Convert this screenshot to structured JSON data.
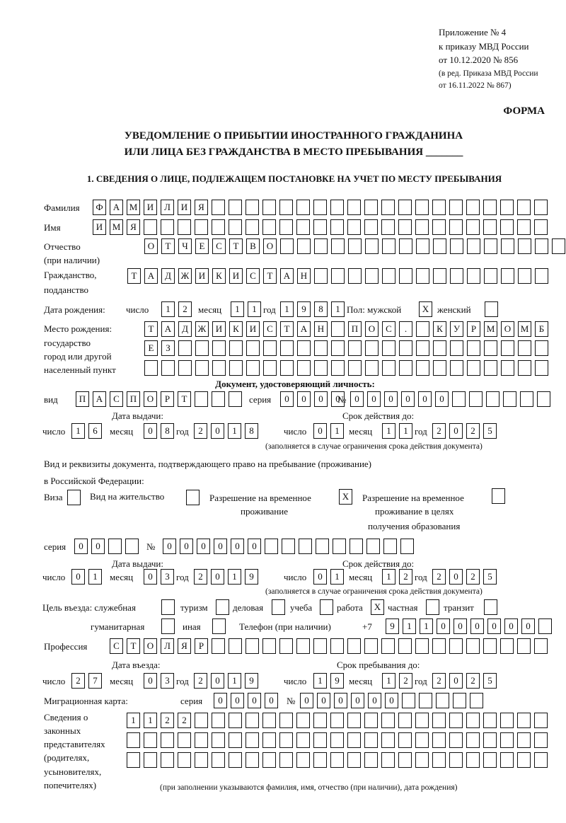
{
  "header": {
    "appendix": "Приложение № 4",
    "order_line": "к приказу МВД России",
    "order_date": "от 10.12.2020 № 856",
    "edition_line": "(в ред. Приказа МВД России",
    "edition_date": "от 16.11.2022 № 867)",
    "form_label": "ФОРМА",
    "title_line1": "УВЕДОМЛЕНИЕ О ПРИБЫТИИ ИНОСТРАННОГО ГРАЖДАНИНА",
    "title_line2": "ИЛИ ЛИЦА БЕЗ ГРАЖДАНСТВА В МЕСТО ПРЕБЫВАНИЯ _______",
    "section1": "1. СВЕДЕНИЯ О ЛИЦЕ, ПОДЛЕЖАЩЕМ ПОСТАНОВКЕ НА УЧЕТ ПО МЕСТУ ПРЕБЫВАНИЯ"
  },
  "labels": {
    "surname": "Фамилия",
    "name": "Имя",
    "patronymic": "Отчество",
    "patronymic_note": "(при наличии)",
    "citizenship": "Гражданство,",
    "citizenship2": "подданство",
    "birth_date": "Дата рождения:",
    "day": "число",
    "month": "месяц",
    "year": "год",
    "sex": "Пол: мужской",
    "female": "женский",
    "birth_place": "Место рождения:",
    "bp_state": "государство",
    "bp_city": "город или другой",
    "bp_city2": "населенный пункт",
    "id_doc": "Документ, удостоверяющий личность:",
    "kind": "вид",
    "series": "серия",
    "number": "№",
    "issue_date": "Дата выдачи:",
    "valid_until": "Срок действия до:",
    "validity_note": "(заполняется в случае ограничения срока действия документа)",
    "stay_doc1": "Вид и реквизиты документа, подтверждающего право на пребывание (проживание)",
    "stay_doc2": "в Российской Федерации:",
    "visa": "Виза",
    "residence": "Вид на жительство",
    "temp_permit": "Разрешение на временное",
    "temp_permit2": "проживание",
    "edu_permit": "Разрешение на временное",
    "edu_permit2": "проживание в целях",
    "edu_permit3": "получения образования",
    "purpose": "Цель въезда: служебная",
    "tourism": "туризм",
    "business": "деловая",
    "study": "учеба",
    "work": "работа",
    "private": "частная",
    "transit": "транзит",
    "humanitarian": "гуманитарная",
    "other": "иная",
    "phone": "Телефон (при наличии)",
    "phone_prefix": "+7",
    "profession": "Профессия",
    "entry_date": "Дата въезда:",
    "stay_until": "Срок пребывания до:",
    "migration_card": "Миграционная карта:",
    "reps1": "Сведения о",
    "reps2": "законных",
    "reps3": "представителях",
    "reps4": "(родителях,",
    "reps5": "усыновителях,",
    "reps6": "попечителях)",
    "reps_note": "(при заполнении указываются фамилия, имя, отчество (при наличии), дата рождения)"
  },
  "fields": {
    "surname": [
      "Ф",
      "А",
      "М",
      "И",
      "Л",
      "И",
      "Я",
      "",
      "",
      "",
      "",
      "",
      "",
      "",
      "",
      "",
      "",
      "",
      "",
      "",
      "",
      "",
      "",
      "",
      "",
      "",
      ""
    ],
    "name": [
      "И",
      "М",
      "Я",
      "",
      "",
      "",
      "",
      "",
      "",
      "",
      "",
      "",
      "",
      "",
      "",
      "",
      "",
      "",
      "",
      "",
      "",
      "",
      "",
      "",
      "",
      "",
      ""
    ],
    "patronymic": [
      "О",
      "Т",
      "Ч",
      "Е",
      "С",
      "Т",
      "В",
      "О",
      "",
      "",
      "",
      "",
      "",
      "",
      "",
      "",
      "",
      "",
      "",
      "",
      "",
      "",
      "",
      "",
      ""
    ],
    "citizenship": [
      "Т",
      "А",
      "Д",
      "Ж",
      "И",
      "К",
      "И",
      "С",
      "Т",
      "А",
      "Н",
      "",
      "",
      "",
      "",
      "",
      "",
      "",
      "",
      "",
      "",
      "",
      "",
      "",
      ""
    ],
    "birth_day": [
      "1",
      "2"
    ],
    "birth_month": [
      "1",
      "1"
    ],
    "birth_year": [
      "1",
      "9",
      "8",
      "1"
    ],
    "sex_male": [
      "X"
    ],
    "sex_female": [
      ""
    ],
    "birth_place_1": [
      "Т",
      "А",
      "Д",
      "Ж",
      "И",
      "К",
      "И",
      "С",
      "Т",
      "А",
      "Н",
      "",
      "П",
      "О",
      "С",
      ".",
      "",
      "К",
      "У",
      "Р",
      "М",
      "О",
      "М",
      "Б"
    ],
    "birth_place_2": [
      "Е",
      "З",
      "",
      "",
      "",
      "",
      "",
      "",
      "",
      "",
      "",
      "",
      "",
      "",
      "",
      "",
      "",
      "",
      "",
      "",
      "",
      "",
      "",
      ""
    ],
    "birth_place_3": [
      "",
      "",
      "",
      "",
      "",
      "",
      "",
      "",
      "",
      "",
      "",
      "",
      "",
      "",
      "",
      "",
      "",
      "",
      "",
      "",
      "",
      "",
      "",
      ""
    ],
    "id_kind": [
      "П",
      "А",
      "С",
      "П",
      "О",
      "Р",
      "Т",
      "",
      "",
      ""
    ],
    "id_series": [
      "0",
      "0",
      "0",
      "0"
    ],
    "id_number": [
      "0",
      "0",
      "0",
      "0",
      "0",
      "0",
      "",
      "",
      "",
      "",
      "",
      ""
    ],
    "id_issue_day": [
      "1",
      "6"
    ],
    "id_issue_month": [
      "0",
      "8"
    ],
    "id_issue_year": [
      "2",
      "0",
      "1",
      "8"
    ],
    "id_valid_day": [
      "0",
      "1"
    ],
    "id_valid_month": [
      "1",
      "1"
    ],
    "id_valid_year": [
      "2",
      "0",
      "2",
      "5"
    ],
    "visa": [
      ""
    ],
    "residence": [
      ""
    ],
    "temp_permit": [
      "X"
    ],
    "edu_permit": [
      ""
    ],
    "stay_series": [
      "0",
      "0",
      "",
      ""
    ],
    "stay_number": [
      "0",
      "0",
      "0",
      "0",
      "0",
      "0",
      "",
      "",
      "",
      "",
      "",
      "",
      "",
      "",
      ""
    ],
    "stay_issue_day": [
      "0",
      "1"
    ],
    "stay_issue_month": [
      "0",
      "3"
    ],
    "stay_issue_year": [
      "2",
      "0",
      "1",
      "9"
    ],
    "stay_valid_day": [
      "0",
      "1"
    ],
    "stay_valid_month": [
      "1",
      "2"
    ],
    "stay_valid_year": [
      "2",
      "0",
      "2",
      "5"
    ],
    "p_official": [
      ""
    ],
    "p_tourism": [
      ""
    ],
    "p_business": [
      ""
    ],
    "p_study": [
      ""
    ],
    "p_work": [
      "X"
    ],
    "p_private": [
      ""
    ],
    "p_transit": [
      ""
    ],
    "p_humanitarian": [
      ""
    ],
    "p_other": [
      ""
    ],
    "phone": [
      "9",
      "1",
      "1",
      "0",
      "0",
      "0",
      "0",
      "0",
      "0",
      ""
    ],
    "profession": [
      "С",
      "Т",
      "О",
      "Л",
      "Я",
      "Р",
      "",
      "",
      "",
      "",
      "",
      "",
      "",
      "",
      "",
      "",
      "",
      "",
      "",
      "",
      "",
      "",
      "",
      "",
      "",
      ""
    ],
    "entry_day": [
      "2",
      "7"
    ],
    "entry_month": [
      "0",
      "3"
    ],
    "entry_year": [
      "2",
      "0",
      "1",
      "9"
    ],
    "stay_day": [
      "1",
      "9"
    ],
    "stay_month": [
      "1",
      "2"
    ],
    "stay_year": [
      "2",
      "0",
      "2",
      "5"
    ],
    "mc_series": [
      "0",
      "0",
      "0",
      "0"
    ],
    "mc_number": [
      "0",
      "0",
      "0",
      "0",
      "0",
      "0",
      "",
      "",
      "",
      "",
      ""
    ],
    "reps_1": [
      "1",
      "1",
      "2",
      "2",
      "",
      "",
      "",
      "",
      "",
      "",
      "",
      "",
      "",
      "",
      "",
      "",
      "",
      "",
      "",
      "",
      "",
      "",
      "",
      "",
      ""
    ],
    "reps_2": [
      "",
      "",
      "",
      "",
      "",
      "",
      "",
      "",
      "",
      "",
      "",
      "",
      "",
      "",
      "",
      "",
      "",
      "",
      "",
      "",
      "",
      "",
      "",
      "",
      ""
    ],
    "reps_3": [
      "",
      "",
      "",
      "",
      "",
      "",
      "",
      "",
      "",
      "",
      "",
      "",
      "",
      "",
      "",
      "",
      "",
      "",
      "",
      "",
      "",
      "",
      "",
      "",
      ""
    ]
  }
}
